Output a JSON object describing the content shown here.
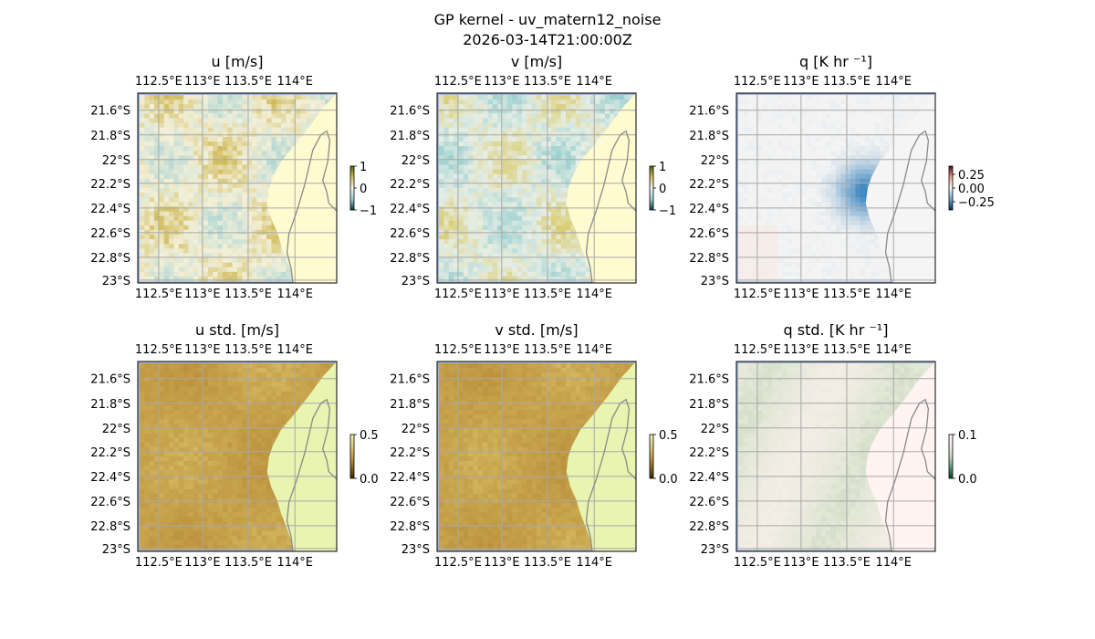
{
  "figure": {
    "title_line1": "GP kernel - uv_matern12_noise",
    "title_line2": "2026-03-14T21:00:00Z"
  },
  "chart_data": [
    {
      "type": "heatmap",
      "title": "u [m/s]",
      "x_ticks": [
        "112.5°E",
        "113°E",
        "113.5°E",
        "114°E"
      ],
      "y_ticks": [
        "21.6°S",
        "21.8°S",
        "22°S",
        "22.2°S",
        "22.4°S",
        "22.6°S",
        "22.8°S",
        "23°S"
      ],
      "colorbar": {
        "ticks": [
          "1",
          "0",
          "−1"
        ],
        "range": [
          -1,
          1
        ],
        "colors": [
          "#0b3d4a",
          "#9fd2d0",
          "#f5f5f0",
          "#d8c060",
          "#4a6a00"
        ]
      },
      "colors": {
        "low": "#a8d4d4",
        "mid": "#f4f0d8",
        "high": "#c8b040",
        "land": "#fffbd0"
      }
    },
    {
      "type": "heatmap",
      "title": "v [m/s]",
      "x_ticks": [
        "112.5°E",
        "113°E",
        "113.5°E",
        "114°E"
      ],
      "y_ticks": [
        "21.6°S",
        "21.8°S",
        "22°S",
        "22.2°S",
        "22.4°S",
        "22.6°S",
        "22.8°S",
        "23°S"
      ],
      "colorbar": {
        "ticks": [
          "1",
          "0",
          "−1"
        ],
        "range": [
          -1,
          1
        ],
        "colors": [
          "#0b3d4a",
          "#9fd2d0",
          "#f5f5f0",
          "#d8c060",
          "#4a6a00"
        ]
      },
      "colors": {
        "low": "#8ccaca",
        "mid": "#e6eee6",
        "high": "#d8c860",
        "land": "#fffbd0"
      }
    },
    {
      "type": "heatmap",
      "title": "q [K hr ⁻¹]",
      "x_ticks": [
        "112.5°E",
        "113°E",
        "113.5°E",
        "114°E"
      ],
      "y_ticks": [
        "21.6°S",
        "21.8°S",
        "22°S",
        "22.2°S",
        "22.4°S",
        "22.6°S",
        "22.8°S",
        "23°S"
      ],
      "colorbar": {
        "ticks": [
          "0.25",
          "0.00",
          "−0.25"
        ],
        "range": [
          -0.4,
          0.4
        ],
        "colors": [
          "#08306b",
          "#6aaed6",
          "#f7f7f7",
          "#f4a582",
          "#67001f"
        ]
      },
      "colors": {
        "low": "#2a7ab8",
        "mid": "#f4f4f4",
        "high": "#fcd8c8",
        "land": "#f5f5f5"
      }
    },
    {
      "type": "heatmap",
      "title": "u std. [m/s]",
      "x_ticks": [
        "112.5°E",
        "113°E",
        "113.5°E",
        "114°E"
      ],
      "y_ticks": [
        "21.6°S",
        "21.8°S",
        "22°S",
        "22.2°S",
        "22.4°S",
        "22.6°S",
        "22.8°S",
        "23°S"
      ],
      "colorbar": {
        "ticks": [
          "0.5",
          "0.0"
        ],
        "range": [
          0,
          0.5
        ],
        "colors": [
          "#3a2a00",
          "#8a6a20",
          "#c8a050",
          "#e0d080",
          "#eef6b0"
        ]
      },
      "colors": {
        "low": "#e0d080",
        "mid": "#c9a64e",
        "high": "#b88c3a",
        "land": "#e8f4b0"
      }
    },
    {
      "type": "heatmap",
      "title": "v std. [m/s]",
      "x_ticks": [
        "112.5°E",
        "113°E",
        "113.5°E",
        "114°E"
      ],
      "y_ticks": [
        "21.6°S",
        "21.8°S",
        "22°S",
        "22.2°S",
        "22.4°S",
        "22.6°S",
        "22.8°S",
        "23°S"
      ],
      "colorbar": {
        "ticks": [
          "0.5",
          "0.0"
        ],
        "range": [
          0,
          0.5
        ],
        "colors": [
          "#3a2a00",
          "#8a6a20",
          "#c8a050",
          "#e0d080",
          "#eef6b0"
        ]
      },
      "colors": {
        "low": "#e0d080",
        "mid": "#c9a64e",
        "high": "#b88c3a",
        "land": "#e8f4b0"
      }
    },
    {
      "type": "heatmap",
      "title": "q std. [K hr ⁻¹]",
      "x_ticks": [
        "112.5°E",
        "113°E",
        "113.5°E",
        "114°E"
      ],
      "y_ticks": [
        "21.6°S",
        "21.8°S",
        "22°S",
        "22.2°S",
        "22.4°S",
        "22.6°S",
        "22.8°S",
        "23°S"
      ],
      "colorbar": {
        "ticks": [
          "0.1",
          "0.0"
        ],
        "range": [
          0,
          0.1
        ],
        "colors": [
          "#00441b",
          "#5aa070",
          "#c8dcc0",
          "#f4ece6",
          "#fff0f0"
        ]
      },
      "colors": {
        "low": "#f6eee8",
        "mid": "#e4e8d8",
        "high": "#b8ccac",
        "land": "#fff4f2"
      }
    }
  ]
}
